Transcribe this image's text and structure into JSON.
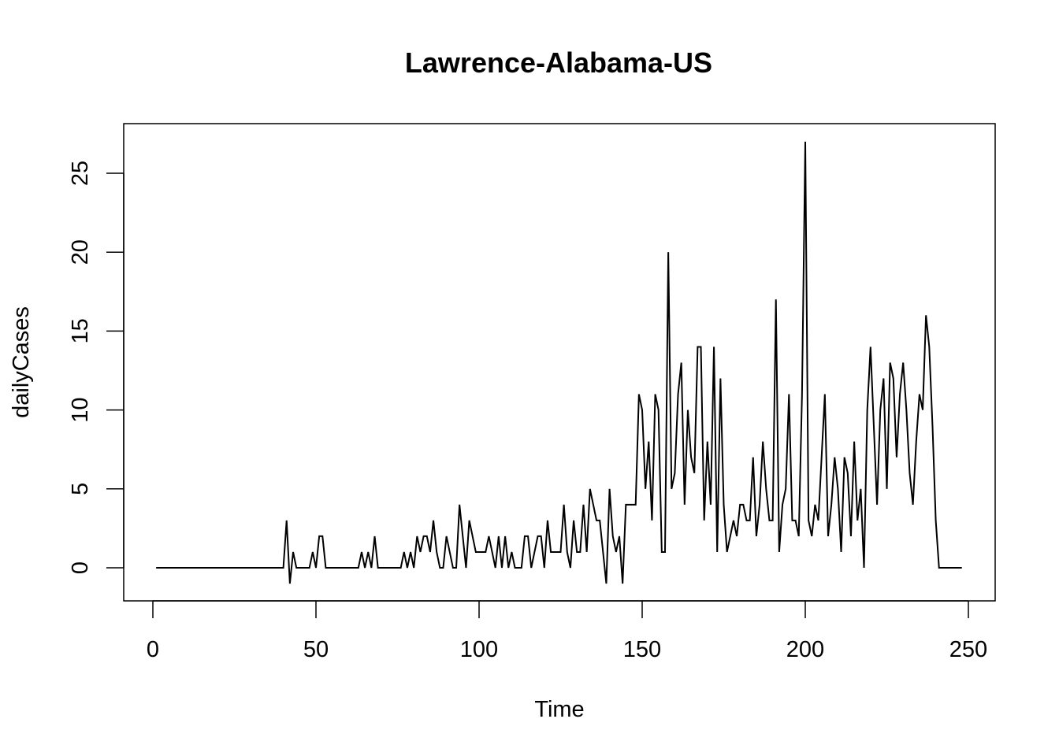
{
  "chart_data": {
    "type": "line",
    "title": "Lawrence-Alabama-US",
    "xlabel": "Time",
    "ylabel": "dailyCases",
    "xlim": [
      1,
      248
    ],
    "ylim": [
      -1,
      27
    ],
    "x_ticks": [
      0,
      50,
      100,
      150,
      200,
      250
    ],
    "y_ticks": [
      0,
      5,
      10,
      15,
      20,
      25
    ],
    "grid": false,
    "legend": "none",
    "line_color": "#000000",
    "series": [
      {
        "x_start": 1,
        "values": [
          0,
          0,
          0,
          0,
          0,
          0,
          0,
          0,
          0,
          0,
          0,
          0,
          0,
          0,
          0,
          0,
          0,
          0,
          0,
          0,
          0,
          0,
          0,
          0,
          0,
          0,
          0,
          0,
          0,
          0,
          0,
          0,
          0,
          0,
          0,
          0,
          0,
          0,
          0,
          0,
          3,
          -1,
          1,
          0,
          0,
          0,
          0,
          0,
          1,
          0,
          2,
          2,
          0,
          0,
          0,
          0,
          0,
          0,
          0,
          0,
          0,
          0,
          0,
          1,
          0,
          1,
          0,
          2,
          0,
          0,
          0,
          0,
          0,
          0,
          0,
          0,
          1,
          0,
          1,
          0,
          2,
          1,
          2,
          2,
          1,
          3,
          1,
          0,
          0,
          2,
          1,
          0,
          0,
          4,
          2,
          0,
          3,
          2,
          1,
          1,
          1,
          1,
          2,
          1,
          0,
          2,
          0,
          2,
          0,
          1,
          0,
          0,
          0,
          2,
          2,
          0,
          1,
          2,
          2,
          0,
          3,
          1,
          1,
          1,
          1,
          4,
          1,
          0,
          3,
          1,
          1,
          4,
          1,
          5,
          4,
          3,
          3,
          1,
          -1,
          5,
          2,
          1,
          2,
          -1,
          4,
          4,
          4,
          4,
          11,
          10,
          5,
          8,
          3,
          11,
          10,
          1,
          1,
          20,
          5,
          6,
          11,
          13,
          4,
          10,
          7,
          6,
          14,
          14,
          3,
          8,
          4,
          14,
          1,
          12,
          4,
          1,
          2,
          3,
          2,
          4,
          4,
          3,
          3,
          7,
          2,
          4,
          8,
          5,
          3,
          3,
          17,
          1,
          4,
          5,
          11,
          3,
          3,
          2,
          11,
          27,
          3,
          2,
          4,
          3,
          7,
          11,
          2,
          4,
          7,
          5,
          1,
          7,
          6,
          2,
          8,
          3,
          5,
          0,
          10,
          14,
          9,
          4,
          10,
          12,
          5,
          13,
          12,
          7,
          11,
          13,
          10,
          6,
          4,
          8,
          11,
          10,
          16,
          14,
          9,
          3,
          0,
          0,
          0,
          0,
          0,
          0,
          0,
          0
        ]
      }
    ]
  }
}
